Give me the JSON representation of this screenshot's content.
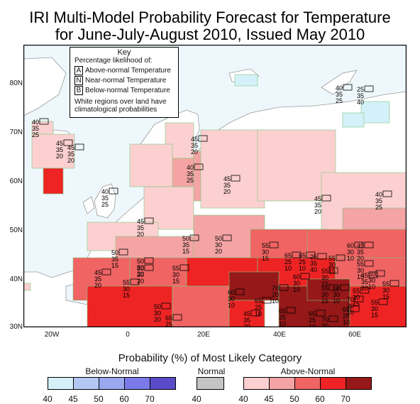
{
  "title": {
    "line1": "IRI Multi-Model Probability Forecast for Temperature",
    "line2": "for June-July-August 2010, Issued May 2010"
  },
  "key": {
    "heading": "Key",
    "subheading": "Percentage likelihood of:",
    "entries": [
      {
        "letter": "A",
        "label": "Above-normal Temperature"
      },
      {
        "letter": "N",
        "label": "Near-normal Temperature"
      },
      {
        "letter": "B",
        "label": "Below-normal Temperature"
      }
    ],
    "note_line1": "White regions over land have",
    "note_line2": "climatological probabilities"
  },
  "axes": {
    "lat_labels": [
      "80N",
      "70N",
      "60N",
      "50N",
      "40N",
      "30N"
    ],
    "lon_labels": [
      "20W",
      "0",
      "20E",
      "40E",
      "60E"
    ]
  },
  "legend": {
    "title": "Probability (%) of Most Likely Category",
    "below_normal": {
      "label": "Below-Normal",
      "values": [
        "40",
        "45",
        "50",
        "60",
        "70"
      ],
      "colors": [
        "#d4f0f8",
        "#b4c8f4",
        "#9aa8f0",
        "#7a7ae8",
        "#5a4cc8"
      ]
    },
    "normal": {
      "label": "Normal",
      "values": [
        "40"
      ],
      "colors": [
        "#c4c4c4"
      ]
    },
    "above_normal": {
      "label": "Above-Normal",
      "values": [
        "40",
        "45",
        "50",
        "60",
        "70"
      ],
      "colors": [
        "#fcd0d0",
        "#f4a4a4",
        "#f06464",
        "#ee2424",
        "#961818"
      ]
    }
  },
  "probability_boxes": [
    {
      "values": [
        "40",
        "35",
        "25"
      ]
    },
    {
      "values": [
        "45",
        "35",
        "20"
      ]
    },
    {
      "values": [
        "45",
        "35",
        "20"
      ]
    },
    {
      "values": [
        "45",
        "35",
        "20"
      ]
    },
    {
      "values": [
        "40",
        "35",
        "25"
      ]
    },
    {
      "values": [
        "45",
        "35",
        "20"
      ]
    },
    {
      "values": [
        "40",
        "35",
        "25"
      ]
    },
    {
      "values": [
        "45",
        "35",
        "20"
      ]
    },
    {
      "values": [
        "45",
        "35",
        "20"
      ]
    },
    {
      "values": [
        "50",
        "35",
        "15"
      ]
    },
    {
      "values": [
        "50",
        "30",
        "20"
      ]
    },
    {
      "values": [
        "55",
        "30",
        "15"
      ]
    },
    {
      "values": [
        "45",
        "35",
        "20"
      ]
    },
    {
      "values": [
        "50",
        "30",
        "20"
      ]
    },
    {
      "values": [
        "50",
        "35",
        "15"
      ]
    },
    {
      "values": [
        "40",
        "35",
        "25"
      ]
    },
    {
      "values": [
        "45",
        "35",
        "20"
      ]
    },
    {
      "values": [
        "40",
        "35",
        "25"
      ]
    },
    {
      "values": [
        "25",
        "35",
        "40"
      ]
    },
    {
      "values": [
        "25",
        "35",
        "40"
      ]
    },
    {
      "values": [
        "55",
        "30",
        "15"
      ]
    },
    {
      "values": [
        "60",
        "30",
        "10"
      ]
    },
    {
      "values": [
        "55",
        "30",
        "15"
      ]
    },
    {
      "values": [
        "50",
        "30",
        "20"
      ]
    },
    {
      "values": [
        "65",
        "25",
        "10"
      ]
    },
    {
      "values": [
        "55",
        "30",
        "15"
      ]
    },
    {
      "values": [
        "50",
        "30",
        "20"
      ]
    },
    {
      "values": [
        "55",
        "30",
        "15"
      ]
    },
    {
      "values": [
        "60",
        "30",
        "10"
      ]
    },
    {
      "values": [
        "65",
        "25",
        "10"
      ]
    },
    {
      "values": [
        "65",
        "25",
        "10"
      ]
    },
    {
      "values": [
        "60",
        "30",
        "10"
      ]
    },
    {
      "values": [
        "55",
        "30",
        "15"
      ]
    },
    {
      "values": [
        "55",
        "30",
        "15"
      ]
    },
    {
      "values": [
        "60",
        "30",
        "10"
      ]
    },
    {
      "values": [
        "45",
        "35",
        "20"
      ]
    },
    {
      "values": [
        "65",
        "25",
        "10"
      ]
    },
    {
      "values": [
        "65",
        "25",
        "10"
      ]
    },
    {
      "values": [
        "55",
        "30",
        "15"
      ]
    },
    {
      "values": [
        "65",
        "25",
        "10"
      ]
    },
    {
      "values": [
        "55",
        "30",
        "15"
      ]
    },
    {
      "values": [
        "60",
        "30",
        "10"
      ]
    },
    {
      "values": [
        "55",
        "30",
        "15"
      ]
    },
    {
      "values": [
        "65",
        "25",
        "10"
      ]
    },
    {
      "values": [
        "45",
        "35",
        "20"
      ]
    },
    {
      "values": [
        "70",
        "20",
        "10"
      ]
    },
    {
      "values": [
        "70",
        "20",
        "10"
      ]
    },
    {
      "values": [
        "70",
        "20",
        "10"
      ]
    }
  ]
}
